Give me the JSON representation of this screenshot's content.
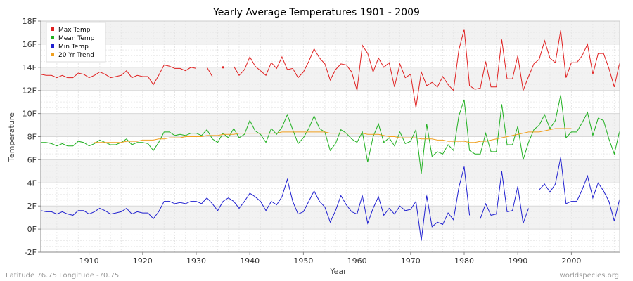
{
  "chart_data": {
    "type": "line",
    "title": "Yearly Average Temperatures 1901 - 2009",
    "xlabel": "Year",
    "ylabel": "Temperature",
    "xlim": [
      1901,
      2009
    ],
    "ylim": [
      -2,
      18
    ],
    "x_ticks": [
      1910,
      1920,
      1930,
      1940,
      1950,
      1960,
      1970,
      1980,
      1990,
      2000
    ],
    "y_ticks": [
      {
        "v": -2,
        "label": "-2F"
      },
      {
        "v": 0,
        "label": "0F"
      },
      {
        "v": 2,
        "label": "2F"
      },
      {
        "v": 4,
        "label": "4F"
      },
      {
        "v": 6,
        "label": "6F"
      },
      {
        "v": 8,
        "label": "8F"
      },
      {
        "v": 10,
        "label": "10F"
      },
      {
        "v": 12,
        "label": "12F"
      },
      {
        "v": 14,
        "label": "14F"
      },
      {
        "v": 16,
        "label": "16F"
      },
      {
        "v": 18,
        "label": "18F"
      }
    ],
    "grid": true,
    "legend_position": "top-left",
    "x": [
      1901,
      1902,
      1903,
      1904,
      1905,
      1906,
      1907,
      1908,
      1909,
      1910,
      1911,
      1912,
      1913,
      1914,
      1915,
      1916,
      1917,
      1918,
      1919,
      1920,
      1921,
      1922,
      1923,
      1924,
      1925,
      1926,
      1927,
      1928,
      1929,
      1930,
      1931,
      1932,
      1933,
      1934,
      1935,
      1936,
      1937,
      1938,
      1939,
      1940,
      1941,
      1942,
      1943,
      1944,
      1945,
      1946,
      1947,
      1948,
      1949,
      1950,
      1951,
      1952,
      1953,
      1954,
      1955,
      1956,
      1957,
      1958,
      1959,
      1960,
      1961,
      1962,
      1963,
      1964,
      1965,
      1966,
      1967,
      1968,
      1969,
      1970,
      1971,
      1972,
      1973,
      1974,
      1975,
      1976,
      1977,
      1978,
      1979,
      1980,
      1981,
      1982,
      1983,
      1984,
      1985,
      1986,
      1987,
      1988,
      1989,
      1990,
      1991,
      1992,
      1993,
      1994,
      1995,
      1996,
      1997,
      1998,
      1999,
      2000,
      2001,
      2002,
      2003,
      2004,
      2005,
      2006,
      2007,
      2008,
      2009
    ],
    "series": [
      {
        "name": "Max Temp",
        "color": "#e02020",
        "values": [
          13.4,
          13.3,
          13.3,
          13.1,
          13.3,
          13.1,
          13.1,
          13.5,
          13.4,
          13.1,
          13.3,
          13.6,
          13.4,
          13.1,
          13.2,
          13.3,
          13.7,
          13.1,
          13.3,
          13.2,
          13.2,
          12.5,
          13.3,
          14.2,
          14.1,
          13.9,
          13.9,
          13.7,
          14.0,
          13.9,
          null,
          14.0,
          13.2,
          null,
          14.0,
          null,
          14.1,
          13.3,
          13.8,
          14.9,
          14.1,
          13.7,
          13.3,
          14.4,
          13.9,
          14.9,
          13.8,
          13.9,
          13.1,
          13.6,
          14.5,
          15.6,
          14.8,
          14.3,
          12.9,
          13.8,
          14.3,
          14.2,
          13.6,
          12.0,
          15.9,
          15.2,
          13.6,
          14.8,
          14.0,
          14.4,
          12.3,
          14.3,
          13.1,
          13.4,
          10.5,
          13.6,
          12.4,
          12.7,
          12.3,
          13.2,
          12.5,
          12.0,
          15.5,
          17.3,
          12.4,
          12.1,
          12.2,
          14.5,
          12.3,
          12.3,
          16.4,
          13.0,
          13.0,
          15.0,
          12.0,
          13.2,
          14.3,
          14.7,
          16.3,
          14.8,
          14.4,
          17.2,
          13.1,
          14.4,
          14.4,
          15.0,
          16.0,
          13.4,
          15.2,
          15.2,
          13.9,
          12.3,
          14.4
        ]
      },
      {
        "name": "Mean Temp",
        "color": "#20b020",
        "values": [
          7.5,
          7.5,
          7.4,
          7.2,
          7.4,
          7.2,
          7.2,
          7.6,
          7.5,
          7.2,
          7.4,
          7.7,
          7.5,
          7.3,
          7.3,
          7.5,
          7.8,
          7.3,
          7.5,
          7.5,
          7.4,
          6.8,
          7.5,
          8.4,
          8.4,
          8.1,
          8.2,
          8.1,
          8.3,
          8.3,
          8.1,
          8.6,
          7.8,
          7.5,
          8.3,
          7.9,
          8.7,
          7.9,
          8.2,
          9.4,
          8.5,
          8.2,
          7.5,
          8.7,
          8.2,
          8.8,
          9.9,
          8.6,
          7.4,
          7.9,
          8.7,
          9.8,
          8.7,
          8.4,
          6.8,
          7.4,
          8.6,
          8.3,
          7.8,
          7.5,
          8.4,
          5.8,
          8.0,
          9.1,
          7.5,
          7.9,
          7.2,
          8.4,
          7.4,
          7.6,
          8.6,
          4.8,
          9.1,
          6.3,
          6.7,
          6.5,
          7.3,
          6.8,
          9.8,
          11.2,
          6.8,
          6.5,
          6.5,
          8.3,
          6.7,
          6.7,
          10.8,
          7.3,
          7.3,
          8.9,
          6.0,
          7.5,
          8.6,
          9.0,
          9.9,
          8.7,
          9.4,
          11.6,
          7.9,
          8.4,
          8.4,
          9.2,
          10.1,
          8.1,
          9.6,
          9.4,
          7.8,
          6.5,
          8.5
        ]
      },
      {
        "name": "Min Temp",
        "color": "#2020d0",
        "values": [
          1.6,
          1.5,
          1.5,
          1.3,
          1.5,
          1.3,
          1.2,
          1.6,
          1.6,
          1.3,
          1.5,
          1.8,
          1.6,
          1.3,
          1.4,
          1.5,
          1.8,
          1.3,
          1.5,
          1.4,
          1.4,
          0.9,
          1.5,
          2.4,
          2.4,
          2.2,
          2.3,
          2.2,
          2.4,
          2.4,
          2.2,
          2.7,
          2.2,
          1.6,
          2.4,
          2.7,
          2.4,
          1.8,
          2.4,
          3.1,
          2.8,
          2.4,
          1.6,
          2.4,
          2.1,
          2.8,
          4.3,
          2.4,
          1.3,
          1.5,
          2.4,
          3.3,
          2.4,
          1.9,
          0.6,
          1.6,
          2.9,
          2.1,
          1.5,
          1.3,
          2.9,
          0.5,
          1.8,
          2.8,
          1.2,
          1.8,
          1.3,
          2.0,
          1.6,
          1.7,
          2.4,
          -1.0,
          2.9,
          0.2,
          0.6,
          0.4,
          1.4,
          0.8,
          3.6,
          5.4,
          1.2,
          null,
          0.9,
          2.2,
          1.2,
          1.3,
          5.0,
          1.5,
          1.6,
          3.7,
          0.5,
          1.8,
          null,
          3.4,
          3.9,
          3.2,
          3.9,
          6.2,
          2.2,
          2.4,
          2.4,
          3.4,
          4.6,
          2.7,
          4.0,
          3.3,
          2.4,
          0.7,
          2.6
        ]
      },
      {
        "name": "20 Yr Trend",
        "color": "#f0a020",
        "values": [
          null,
          null,
          null,
          null,
          null,
          null,
          null,
          null,
          null,
          null,
          7.5,
          7.5,
          7.5,
          7.5,
          7.5,
          7.5,
          7.6,
          7.6,
          7.6,
          7.7,
          7.7,
          7.7,
          7.8,
          7.8,
          7.9,
          7.9,
          7.9,
          8.0,
          8.0,
          8.0,
          8.0,
          8.1,
          8.1,
          8.1,
          8.2,
          8.2,
          8.2,
          8.3,
          8.3,
          8.3,
          8.3,
          8.3,
          8.3,
          8.3,
          8.3,
          8.4,
          8.4,
          8.4,
          8.4,
          8.4,
          8.4,
          8.4,
          8.4,
          8.4,
          8.3,
          8.3,
          8.3,
          8.3,
          8.3,
          8.3,
          8.3,
          8.2,
          8.2,
          8.2,
          8.1,
          8.0,
          8.0,
          7.9,
          7.9,
          7.9,
          7.9,
          7.8,
          7.8,
          7.8,
          7.7,
          7.7,
          7.6,
          7.6,
          7.6,
          7.6,
          7.5,
          7.5,
          7.6,
          7.6,
          7.7,
          7.8,
          7.9,
          8.0,
          8.1,
          8.2,
          8.3,
          8.4,
          8.4,
          8.4,
          8.5,
          8.6,
          8.7,
          8.7,
          8.7,
          8.7,
          null,
          null,
          null,
          null,
          null,
          null,
          null,
          null,
          null
        ]
      }
    ]
  },
  "footer": {
    "left": "Latitude 76.75 Longitude -70.75",
    "right": "worldspecies.org"
  },
  "colors": {
    "plot_bg_light": "#ffffff",
    "plot_bg_dark": "#f2f2f2",
    "grid": "#dddddd",
    "axis": "#888888"
  }
}
